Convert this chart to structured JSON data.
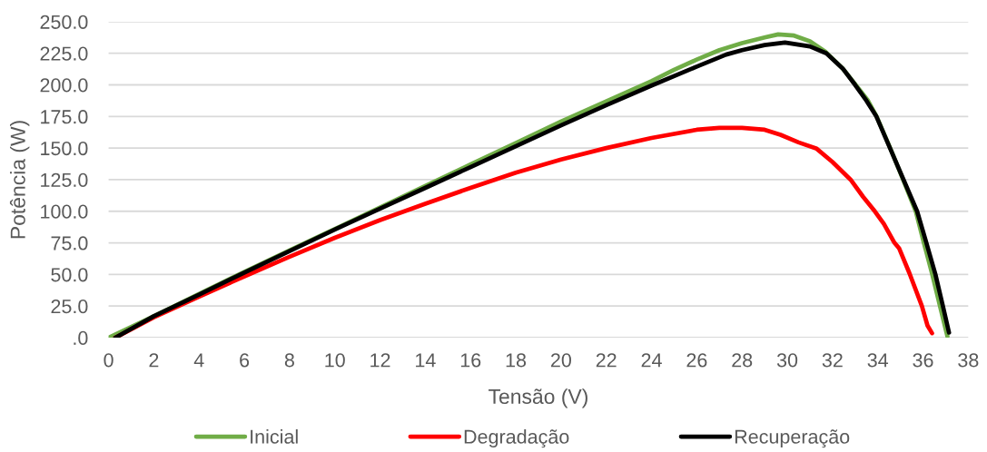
{
  "chart_data": {
    "type": "line",
    "xlabel": "Tensão (V)",
    "ylabel": "Potência (W)",
    "xlim": [
      0,
      38
    ],
    "xticks": [
      0,
      2,
      4,
      6,
      8,
      10,
      12,
      14,
      16,
      18,
      20,
      22,
      24,
      26,
      28,
      30,
      32,
      34,
      36,
      38
    ],
    "ylim": [
      0,
      250
    ],
    "yticks": [
      {
        "value": 0,
        "label": ".0"
      },
      {
        "value": 25,
        "label": "25.0"
      },
      {
        "value": 50,
        "label": "50.0"
      },
      {
        "value": 75,
        "label": "75.0"
      },
      {
        "value": 100,
        "label": "100.0"
      },
      {
        "value": 125,
        "label": "125.0"
      },
      {
        "value": 150,
        "label": "150.0"
      },
      {
        "value": 175,
        "label": "175.0"
      },
      {
        "value": 200,
        "label": "200.0"
      },
      {
        "value": 225,
        "label": "225.0"
      },
      {
        "value": 250,
        "label": "250.0"
      }
    ],
    "grid": "y",
    "legend": "bottom",
    "line_style": "solid",
    "series": [
      {
        "name": "Inicial",
        "color": "#70ad47",
        "x": [
          0,
          2,
          4,
          6,
          8,
          10,
          12,
          14,
          16,
          18,
          20,
          22,
          24,
          25,
          26,
          27,
          28,
          29,
          29.6,
          30.3,
          31,
          31.7,
          32.45,
          33,
          33.55,
          33.95,
          34.55,
          35.12,
          35.68,
          36.04,
          36.41,
          36.75,
          37.08
        ],
        "values": [
          0,
          17,
          34.5,
          52,
          69,
          86,
          103,
          120,
          137,
          154,
          171,
          187,
          203,
          212,
          220,
          227.5,
          233,
          237.5,
          240,
          239,
          234.5,
          226,
          213,
          200.5,
          188,
          175,
          150,
          125,
          100,
          75,
          50,
          25,
          1
        ]
      },
      {
        "name": "Degradação",
        "color": "#ff0000",
        "x": [
          0.3,
          2,
          4,
          6,
          8,
          10,
          12,
          14,
          16,
          18,
          20,
          22,
          24,
          26,
          27,
          28,
          29,
          29.7,
          30.5,
          31.3,
          32,
          32.8,
          33.35,
          33.87,
          34.27,
          34.74,
          34.95,
          35.4,
          35.95,
          36.2,
          36.4
        ],
        "values": [
          0,
          16,
          32.5,
          48.5,
          64,
          79,
          93,
          106,
          118.5,
          130.5,
          141,
          150,
          158,
          164.5,
          166,
          166,
          164.5,
          160.5,
          154.5,
          149.5,
          139,
          125,
          111.5,
          100,
          90,
          75,
          70.5,
          51,
          25,
          9.5,
          3.5
        ]
      },
      {
        "name": "Recuperação",
        "color": "#000000",
        "x": [
          0.3,
          2,
          4,
          6,
          8,
          10,
          12,
          14,
          16,
          18,
          20,
          22,
          24,
          26,
          27.3,
          28,
          29,
          29.9,
          31,
          31.73,
          32.45,
          33,
          33.5,
          33.94,
          34.54,
          35.14,
          35.74,
          36.15,
          36.55,
          36.88,
          37.15
        ],
        "values": [
          0,
          17,
          34,
          51.5,
          68.5,
          85.5,
          102,
          118.5,
          135,
          151.5,
          168,
          184,
          199.5,
          214.5,
          224,
          227.5,
          231.5,
          233.5,
          230.5,
          225,
          213,
          200,
          187.5,
          175,
          150,
          125,
          100,
          75,
          50,
          25,
          4
        ]
      }
    ]
  }
}
